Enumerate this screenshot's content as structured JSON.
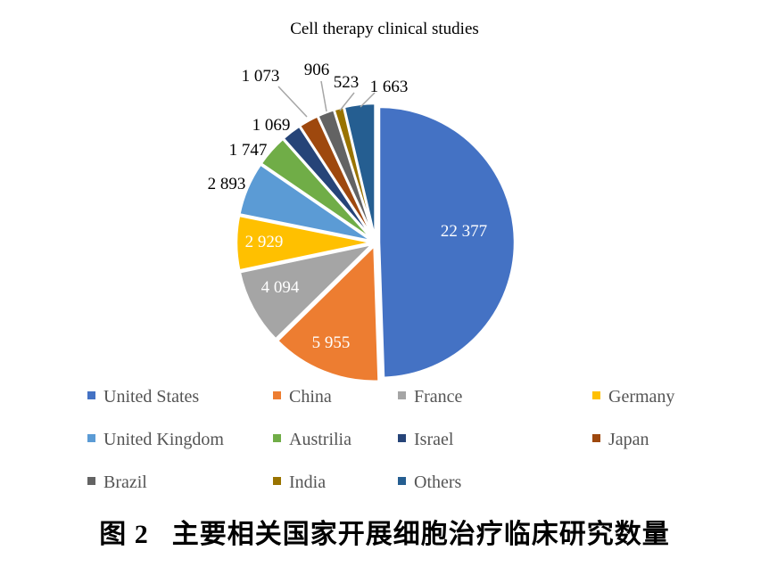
{
  "chart_data": {
    "type": "pie",
    "title": "Cell therapy clinical studies",
    "slices": [
      {
        "label": "United States",
        "value": 22377,
        "display": "22 377",
        "color": "#4472C4",
        "label_inside": true
      },
      {
        "label": "China",
        "value": 5955,
        "display": "5 955",
        "color": "#ED7D31",
        "label_inside": true
      },
      {
        "label": "France",
        "value": 4094,
        "display": "4 094",
        "color": "#A5A5A5",
        "label_inside": true
      },
      {
        "label": "Germany",
        "value": 2929,
        "display": "2 929",
        "color": "#FFC000",
        "label_inside": true
      },
      {
        "label": "United Kingdom",
        "value": 2893,
        "display": "2 893",
        "color": "#5B9BD5",
        "label_inside": false
      },
      {
        "label": "Austrilia",
        "value": 1747,
        "display": "1 747",
        "color": "#70AD47",
        "label_inside": false
      },
      {
        "label": "Israel",
        "value": 1069,
        "display": "1 069",
        "color": "#264478",
        "label_inside": false
      },
      {
        "label": "Japan",
        "value": 1073,
        "display": "1 073",
        "color": "#9E480E",
        "label_inside": false
      },
      {
        "label": "Brazil",
        "value": 906,
        "display": "906",
        "color": "#636363",
        "label_inside": false
      },
      {
        "label": "India",
        "value": 523,
        "display": "523",
        "color": "#997300",
        "label_inside": false
      },
      {
        "label": "Others",
        "value": 1663,
        "display": "1 663",
        "color": "#255E91",
        "label_inside": false
      }
    ],
    "legend_position": "bottom"
  },
  "caption": {
    "figure_number": "图 2",
    "text": "主要相关国家开展细胞治疗临床研究数量"
  }
}
